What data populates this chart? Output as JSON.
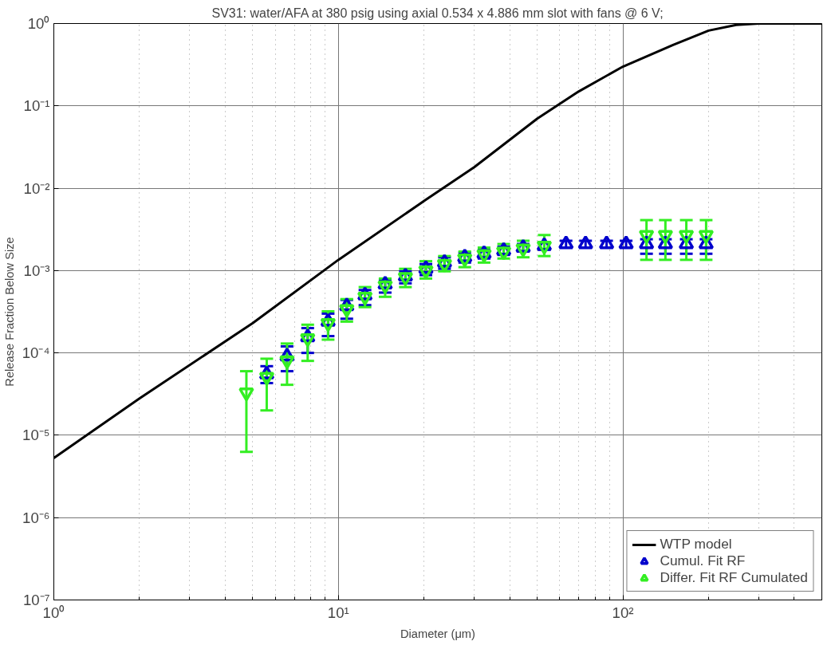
{
  "chart_data": {
    "type": "scatter",
    "title": "SV31: water/AFA at 380 psig using axial 0.534 x 4.886 mm slot with fans @ 6 V;",
    "xlabel": "Diameter (μm)",
    "ylabel": "Release Fraction Below Size",
    "log": "xy",
    "grid": true,
    "legend": "bottom right",
    "xlim": [
      1,
      500
    ],
    "ylim": [
      1e-07,
      1
    ],
    "xticks": [
      {
        "value": 1,
        "label": "10⁰"
      },
      {
        "value": 10,
        "label": "10¹"
      },
      {
        "value": 100,
        "label": "10²"
      }
    ],
    "yticks": [
      {
        "value": 1e-07,
        "label": "10⁻⁷"
      },
      {
        "value": 1e-06,
        "label": "10⁻⁶"
      },
      {
        "value": 1e-05,
        "label": "10⁻⁵"
      },
      {
        "value": 0.0001,
        "label": "10⁻⁴"
      },
      {
        "value": 0.001,
        "label": "10⁻³"
      },
      {
        "value": 0.01,
        "label": "10⁻²"
      },
      {
        "value": 0.1,
        "label": "10⁻¹"
      },
      {
        "value": 1,
        "label": "10⁰"
      }
    ],
    "series": [
      {
        "name": "WTP model",
        "type": "line",
        "color": "#000000",
        "marker": "none",
        "x": [
          1,
          2,
          5,
          10,
          20,
          30,
          50,
          70,
          100,
          150,
          200,
          250,
          300,
          500
        ],
        "values": [
          5.3e-06,
          2.8e-05,
          0.00023,
          0.00135,
          0.007,
          0.018,
          0.07,
          0.15,
          0.3,
          0.55,
          0.82,
          0.96,
          1.0,
          1.0
        ]
      },
      {
        "name": "Cumul. Fit RF",
        "color": "#0000cc",
        "marker": "triangle",
        "x": [
          5.6,
          6.6,
          7.8,
          9.2,
          10.7,
          12.4,
          14.6,
          17.2,
          20.3,
          23.6,
          27.8,
          32.5,
          38.1,
          44.6,
          52.9,
          63.1,
          73.9,
          87.6,
          102.6,
          121,
          141,
          167,
          196
        ],
        "values": [
          5.5e-05,
          9.1e-05,
          0.000155,
          0.00024,
          0.00037,
          0.0005,
          0.00068,
          0.00085,
          0.00105,
          0.00125,
          0.00145,
          0.0016,
          0.00175,
          0.0019,
          0.002,
          0.0021,
          0.0021,
          0.0021,
          0.0021,
          0.0021,
          0.0021,
          0.0021,
          0.0021
        ],
        "errors": [
          [
            4.3e-05,
            6.9e-05
          ],
          [
            6e-05,
            0.00012
          ],
          [
            0.0001,
            0.0002
          ],
          [
            0.00016,
            0.0003
          ],
          [
            0.00026,
            0.00044
          ],
          [
            0.00038,
            0.00058
          ],
          [
            0.00054,
            0.00078
          ],
          [
            0.0007,
            0.00098
          ],
          [
            0.00088,
            0.0012
          ],
          [
            0.00105,
            0.00145
          ],
          [
            0.00125,
            0.00165
          ],
          [
            0.0014,
            0.0018
          ],
          [
            0.00155,
            0.00195
          ],
          [
            0.0017,
            0.0021
          ],
          [
            0.0018,
            0.0022
          ],
          [
            0.0019,
            0.0023
          ],
          [
            0.0019,
            0.0023
          ],
          [
            0.0019,
            0.0023
          ],
          [
            0.0019,
            0.0023
          ],
          [
            0.0016,
            0.0024
          ],
          [
            0.0016,
            0.0024
          ],
          [
            0.0016,
            0.0024
          ],
          [
            0.0016,
            0.0024
          ]
        ]
      },
      {
        "name": "Differ. Fit RF Cumulated",
        "color": "#33ee22",
        "marker": "triangle",
        "x": [
          4.75,
          5.6,
          6.6,
          7.8,
          9.2,
          10.7,
          12.4,
          14.6,
          17.2,
          20.3,
          23.6,
          27.8,
          32.5,
          38.1,
          44.6,
          52.9,
          121,
          141,
          167,
          196
        ],
        "values": [
          3.3e-05,
          5.1e-05,
          8.1e-05,
          0.00015,
          0.00023,
          0.00034,
          0.00048,
          0.00066,
          0.00083,
          0.001,
          0.0012,
          0.0014,
          0.00158,
          0.0017,
          0.00185,
          0.002,
          0.0027,
          0.0027,
          0.0027,
          0.0027
        ],
        "errors": [
          [
            6.3e-06,
            6e-05
          ],
          [
            2e-05,
            8.5e-05
          ],
          [
            4.1e-05,
            0.00013
          ],
          [
            8e-05,
            0.00022
          ],
          [
            0.000145,
            0.00032
          ],
          [
            0.00024,
            0.00045
          ],
          [
            0.00036,
            0.00063
          ],
          [
            0.00048,
            0.0008
          ],
          [
            0.00063,
            0.00105
          ],
          [
            0.0008,
            0.0013
          ],
          [
            0.00098,
            0.0015
          ],
          [
            0.0011,
            0.0017
          ],
          [
            0.00125,
            0.0019
          ],
          [
            0.0014,
            0.0021
          ],
          [
            0.00145,
            0.0023
          ],
          [
            0.0015,
            0.0027
          ],
          [
            0.00135,
            0.0041
          ],
          [
            0.00135,
            0.0041
          ],
          [
            0.00135,
            0.0041
          ],
          [
            0.00135,
            0.0041
          ]
        ]
      }
    ]
  }
}
